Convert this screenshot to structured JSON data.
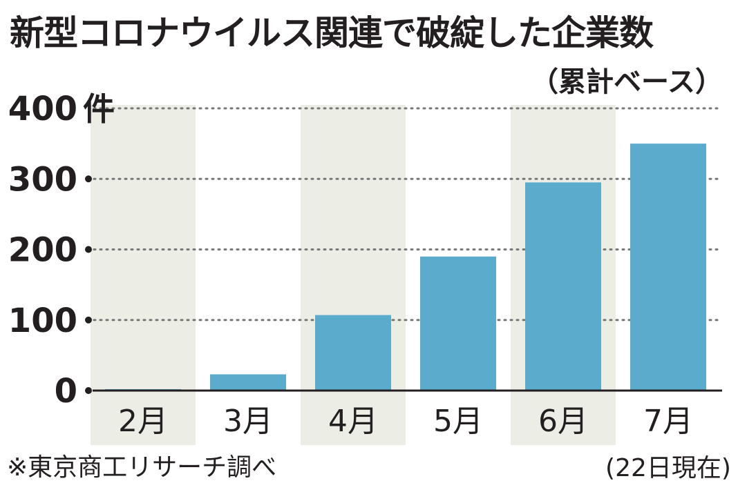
{
  "chart_data": {
    "type": "bar",
    "title": "新型コロナウイルス関連で破綻した企業数",
    "subtitle": "（累計ベース）",
    "categories": [
      "2月",
      "3月",
      "4月",
      "5月",
      "6月",
      "7月"
    ],
    "category_notes": [
      "",
      "",
      "",
      "",
      "",
      "(22日現在)"
    ],
    "values": [
      2,
      23,
      107,
      190,
      295,
      350
    ],
    "ylim": [
      0,
      400
    ],
    "yticks": [
      {
        "value": 0,
        "label": "0"
      },
      {
        "value": 100,
        "label": "100"
      },
      {
        "value": 200,
        "label": "200"
      },
      {
        "value": 300,
        "label": "300"
      },
      {
        "value": 400,
        "label": "400"
      }
    ],
    "yunit": "件",
    "grid": true,
    "shaded_columns": [
      0,
      2,
      4
    ],
    "colors": {
      "bar": "#5aabcc",
      "shade": "#eceee6",
      "grid": "#777777",
      "text": "#231f20"
    }
  },
  "source": "※東京商工リサーチ調べ"
}
